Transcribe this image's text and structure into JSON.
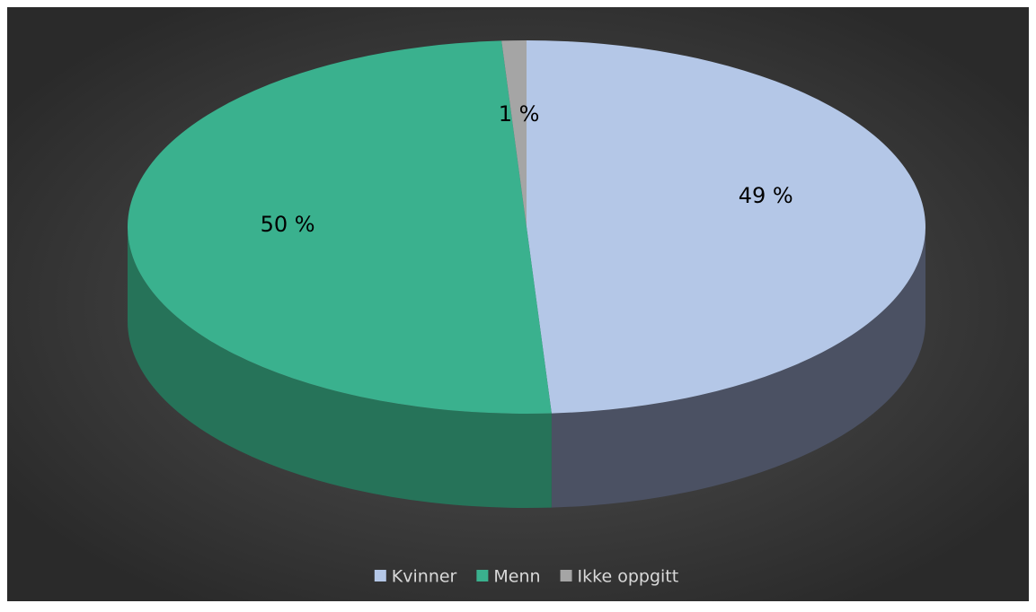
{
  "chart_data": {
    "type": "pie",
    "categories": [
      "Kvinner",
      "Menn",
      "Ikke oppgitt"
    ],
    "values": [
      49,
      50,
      1
    ],
    "value_labels": [
      "49 %",
      "50 %",
      "1 %"
    ],
    "colors": [
      "#b4c7e7",
      "#3ab18e",
      "#a5a5a5"
    ],
    "side_colors": [
      "#4b5163",
      "#267359",
      "#6e6e6e"
    ],
    "legend": "bottom"
  }
}
